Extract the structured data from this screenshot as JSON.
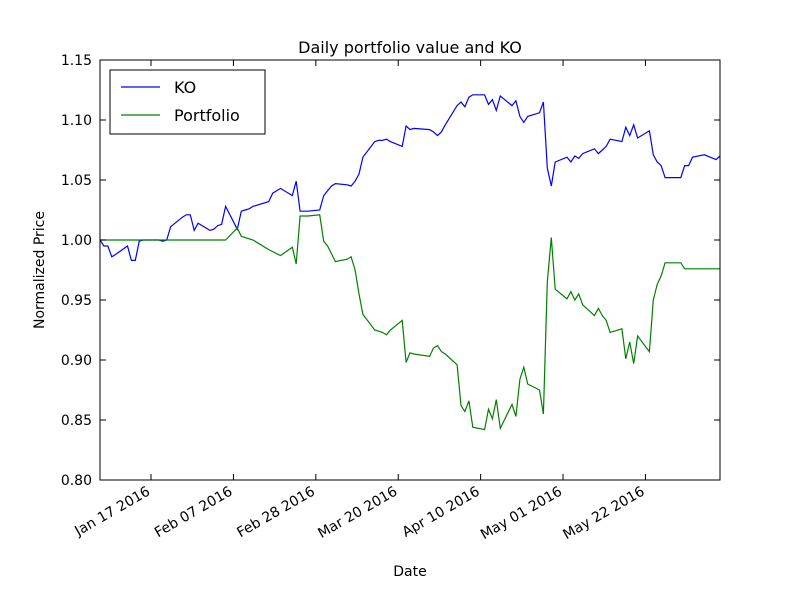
{
  "chart_data": {
    "type": "line",
    "title": "Daily portfolio value and KO",
    "xlabel": "Date",
    "ylabel": "Normalized Price",
    "ylim": [
      0.8,
      1.15
    ],
    "xlim": [
      "2016-01-04",
      "2016-06-10"
    ],
    "y_ticks": [
      "0.80",
      "0.85",
      "0.90",
      "0.95",
      "1.00",
      "1.05",
      "1.10",
      "1.15"
    ],
    "x_ticks": [
      {
        "date": "2016-01-17",
        "label": "Jan 17 2016"
      },
      {
        "date": "2016-02-07",
        "label": "Feb 07 2016"
      },
      {
        "date": "2016-02-28",
        "label": "Feb 28 2016"
      },
      {
        "date": "2016-03-20",
        "label": "Mar 20 2016"
      },
      {
        "date": "2016-04-10",
        "label": "Apr 10 2016"
      },
      {
        "date": "2016-05-01",
        "label": "May 01 2016"
      },
      {
        "date": "2016-05-22",
        "label": "May 22 2016"
      }
    ],
    "grid": false,
    "legend_position": "upper-left",
    "series": [
      {
        "name": "KO",
        "color": "#0000ff",
        "points": [
          [
            "2016-01-04",
            1.0
          ],
          [
            "2016-01-05",
            0.995
          ],
          [
            "2016-01-06",
            0.995
          ],
          [
            "2016-01-07",
            0.986
          ],
          [
            "2016-01-08",
            0.988
          ],
          [
            "2016-01-11",
            0.995
          ],
          [
            "2016-01-12",
            0.983
          ],
          [
            "2016-01-13",
            0.983
          ],
          [
            "2016-01-14",
            0.999
          ],
          [
            "2016-01-15",
            1.0
          ],
          [
            "2016-01-19",
            1.0
          ],
          [
            "2016-01-20",
            0.999
          ],
          [
            "2016-01-21",
            1.0
          ],
          [
            "2016-01-22",
            1.011
          ],
          [
            "2016-01-25",
            1.019
          ],
          [
            "2016-01-26",
            1.021
          ],
          [
            "2016-01-27",
            1.021
          ],
          [
            "2016-01-28",
            1.008
          ],
          [
            "2016-01-29",
            1.014
          ],
          [
            "2016-02-01",
            1.008
          ],
          [
            "2016-02-02",
            1.009
          ],
          [
            "2016-02-03",
            1.012
          ],
          [
            "2016-02-04",
            1.013
          ],
          [
            "2016-02-05",
            1.028
          ],
          [
            "2016-02-08",
            1.009
          ],
          [
            "2016-02-09",
            1.024
          ],
          [
            "2016-02-10",
            1.025
          ],
          [
            "2016-02-11",
            1.026
          ],
          [
            "2016-02-12",
            1.028
          ],
          [
            "2016-02-16",
            1.032
          ],
          [
            "2016-02-17",
            1.039
          ],
          [
            "2016-02-18",
            1.041
          ],
          [
            "2016-02-19",
            1.043
          ],
          [
            "2016-02-22",
            1.037
          ],
          [
            "2016-02-23",
            1.049
          ],
          [
            "2016-02-24",
            1.024
          ],
          [
            "2016-02-25",
            1.024
          ],
          [
            "2016-02-26",
            1.024
          ],
          [
            "2016-02-29",
            1.025
          ],
          [
            "2016-03-01",
            1.037
          ],
          [
            "2016-03-02",
            1.041
          ],
          [
            "2016-03-03",
            1.045
          ],
          [
            "2016-03-04",
            1.047
          ],
          [
            "2016-03-07",
            1.046
          ],
          [
            "2016-03-08",
            1.045
          ],
          [
            "2016-03-09",
            1.049
          ],
          [
            "2016-03-10",
            1.055
          ],
          [
            "2016-03-11",
            1.069
          ],
          [
            "2016-03-14",
            1.082
          ],
          [
            "2016-03-15",
            1.083
          ],
          [
            "2016-03-16",
            1.083
          ],
          [
            "2016-03-17",
            1.084
          ],
          [
            "2016-03-18",
            1.082
          ],
          [
            "2016-03-21",
            1.078
          ],
          [
            "2016-03-22",
            1.095
          ],
          [
            "2016-03-23",
            1.092
          ],
          [
            "2016-03-24",
            1.093
          ],
          [
            "2016-03-28",
            1.092
          ],
          [
            "2016-03-29",
            1.09
          ],
          [
            "2016-03-30",
            1.087
          ],
          [
            "2016-03-31",
            1.09
          ],
          [
            "2016-04-01",
            1.096
          ],
          [
            "2016-04-04",
            1.112
          ],
          [
            "2016-04-05",
            1.115
          ],
          [
            "2016-04-06",
            1.111
          ],
          [
            "2016-04-07",
            1.119
          ],
          [
            "2016-04-08",
            1.121
          ],
          [
            "2016-04-11",
            1.121
          ],
          [
            "2016-04-12",
            1.113
          ],
          [
            "2016-04-13",
            1.117
          ],
          [
            "2016-04-14",
            1.108
          ],
          [
            "2016-04-15",
            1.12
          ],
          [
            "2016-04-18",
            1.112
          ],
          [
            "2016-04-19",
            1.116
          ],
          [
            "2016-04-20",
            1.103
          ],
          [
            "2016-04-21",
            1.098
          ],
          [
            "2016-04-22",
            1.103
          ],
          [
            "2016-04-25",
            1.106
          ],
          [
            "2016-04-26",
            1.115
          ],
          [
            "2016-04-27",
            1.06
          ],
          [
            "2016-04-28",
            1.045
          ],
          [
            "2016-04-29",
            1.065
          ],
          [
            "2016-05-02",
            1.069
          ],
          [
            "2016-05-03",
            1.065
          ],
          [
            "2016-05-04",
            1.07
          ],
          [
            "2016-05-05",
            1.068
          ],
          [
            "2016-05-06",
            1.072
          ],
          [
            "2016-05-09",
            1.076
          ],
          [
            "2016-05-10",
            1.072
          ],
          [
            "2016-05-11",
            1.075
          ],
          [
            "2016-05-12",
            1.078
          ],
          [
            "2016-05-13",
            1.084
          ],
          [
            "2016-05-16",
            1.082
          ],
          [
            "2016-05-17",
            1.094
          ],
          [
            "2016-05-18",
            1.087
          ],
          [
            "2016-05-19",
            1.096
          ],
          [
            "2016-05-20",
            1.085
          ],
          [
            "2016-05-23",
            1.091
          ],
          [
            "2016-05-24",
            1.071
          ],
          [
            "2016-05-25",
            1.065
          ],
          [
            "2016-05-26",
            1.062
          ],
          [
            "2016-05-27",
            1.052
          ],
          [
            "2016-05-31",
            1.052
          ],
          [
            "2016-06-01",
            1.062
          ],
          [
            "2016-06-02",
            1.062
          ],
          [
            "2016-06-03",
            1.069
          ],
          [
            "2016-06-06",
            1.071
          ],
          [
            "2016-06-09",
            1.067
          ],
          [
            "2016-06-10",
            1.07
          ]
        ]
      },
      {
        "name": "Portfolio",
        "color": "#008000",
        "points": [
          [
            "2016-01-04",
            1.0
          ],
          [
            "2016-01-15",
            1.0
          ],
          [
            "2016-02-05",
            1.0
          ],
          [
            "2016-02-08",
            1.01
          ],
          [
            "2016-02-09",
            1.003
          ],
          [
            "2016-02-10",
            1.002
          ],
          [
            "2016-02-12",
            1.0
          ],
          [
            "2016-02-16",
            0.992
          ],
          [
            "2016-02-19",
            0.987
          ],
          [
            "2016-02-22",
            0.994
          ],
          [
            "2016-02-23",
            0.98
          ],
          [
            "2016-02-24",
            1.02
          ],
          [
            "2016-02-26",
            1.02
          ],
          [
            "2016-02-29",
            1.021
          ],
          [
            "2016-03-01",
            0.999
          ],
          [
            "2016-03-02",
            0.995
          ],
          [
            "2016-03-04",
            0.982
          ],
          [
            "2016-03-07",
            0.984
          ],
          [
            "2016-03-08",
            0.986
          ],
          [
            "2016-03-09",
            0.975
          ],
          [
            "2016-03-10",
            0.955
          ],
          [
            "2016-03-11",
            0.938
          ],
          [
            "2016-03-14",
            0.925
          ],
          [
            "2016-03-15",
            0.924
          ],
          [
            "2016-03-16",
            0.923
          ],
          [
            "2016-03-17",
            0.921
          ],
          [
            "2016-03-18",
            0.925
          ],
          [
            "2016-03-21",
            0.933
          ],
          [
            "2016-03-22",
            0.898
          ],
          [
            "2016-03-23",
            0.906
          ],
          [
            "2016-03-24",
            0.905
          ],
          [
            "2016-03-28",
            0.903
          ],
          [
            "2016-03-29",
            0.91
          ],
          [
            "2016-03-30",
            0.912
          ],
          [
            "2016-03-31",
            0.907
          ],
          [
            "2016-04-01",
            0.905
          ],
          [
            "2016-04-04",
            0.896
          ],
          [
            "2016-04-05",
            0.862
          ],
          [
            "2016-04-06",
            0.857
          ],
          [
            "2016-04-07",
            0.866
          ],
          [
            "2016-04-08",
            0.844
          ],
          [
            "2016-04-11",
            0.842
          ],
          [
            "2016-04-12",
            0.859
          ],
          [
            "2016-04-13",
            0.851
          ],
          [
            "2016-04-14",
            0.867
          ],
          [
            "2016-04-15",
            0.843
          ],
          [
            "2016-04-18",
            0.863
          ],
          [
            "2016-04-19",
            0.853
          ],
          [
            "2016-04-20",
            0.884
          ],
          [
            "2016-04-21",
            0.894
          ],
          [
            "2016-04-22",
            0.88
          ],
          [
            "2016-04-25",
            0.875
          ],
          [
            "2016-04-26",
            0.855
          ],
          [
            "2016-04-27",
            0.965
          ],
          [
            "2016-04-28",
            1.002
          ],
          [
            "2016-04-29",
            0.959
          ],
          [
            "2016-05-02",
            0.951
          ],
          [
            "2016-05-03",
            0.957
          ],
          [
            "2016-05-04",
            0.95
          ],
          [
            "2016-05-05",
            0.955
          ],
          [
            "2016-05-06",
            0.946
          ],
          [
            "2016-05-09",
            0.937
          ],
          [
            "2016-05-10",
            0.943
          ],
          [
            "2016-05-11",
            0.937
          ],
          [
            "2016-05-12",
            0.933
          ],
          [
            "2016-05-13",
            0.923
          ],
          [
            "2016-05-16",
            0.926
          ],
          [
            "2016-05-17",
            0.901
          ],
          [
            "2016-05-18",
            0.915
          ],
          [
            "2016-05-19",
            0.897
          ],
          [
            "2016-05-20",
            0.92
          ],
          [
            "2016-05-23",
            0.907
          ],
          [
            "2016-05-24",
            0.95
          ],
          [
            "2016-05-25",
            0.963
          ],
          [
            "2016-05-26",
            0.97
          ],
          [
            "2016-05-27",
            0.981
          ],
          [
            "2016-05-31",
            0.981
          ],
          [
            "2016-06-01",
            0.976
          ],
          [
            "2016-06-10",
            0.976
          ]
        ]
      }
    ]
  }
}
